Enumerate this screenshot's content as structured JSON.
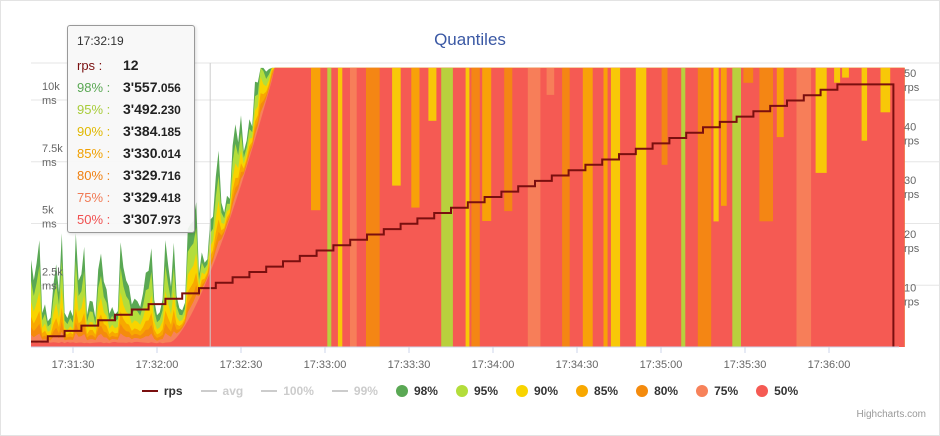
{
  "chart_data": {
    "type": "area",
    "title": "Quantiles",
    "credits": "Highcharts.com",
    "xaxis": {
      "ticks": [
        "17:31:30",
        "17:32:00",
        "17:32:30",
        "17:33:00",
        "17:33:30",
        "17:34:00",
        "17:34:30",
        "17:35:00",
        "17:35:30",
        "17:36:00"
      ],
      "range": [
        "17:31:15",
        "17:36:25"
      ]
    },
    "y_left": {
      "range": [
        0,
        11500
      ],
      "ticks": [
        {
          "value": 2500,
          "label": "2.5k",
          "unit": "ms"
        },
        {
          "value": 5000,
          "label": "5k",
          "unit": "ms"
        },
        {
          "value": 7500,
          "label": "7.5k",
          "unit": "ms"
        },
        {
          "value": 10000,
          "label": "10k",
          "unit": "ms"
        }
      ]
    },
    "y_right": {
      "range": [
        0,
        53
      ],
      "ticks": [
        {
          "value": 10,
          "label": "10",
          "unit": "rps"
        },
        {
          "value": 20,
          "label": "20",
          "unit": "rps"
        },
        {
          "value": 30,
          "label": "30",
          "unit": "rps"
        },
        {
          "value": 40,
          "label": "40",
          "unit": "rps"
        },
        {
          "value": 50,
          "label": "50",
          "unit": "rps"
        }
      ]
    },
    "grid": true,
    "legend_placement": "bottom",
    "rps_series": {
      "name": "rps",
      "color": "#7a0f0f",
      "start": "17:31:15",
      "step_seconds": 6,
      "start_value": 1,
      "end_value": 49,
      "drop_time": "17:36:25"
    },
    "quantile_series": [
      {
        "name": "98%",
        "color": "#5aa854"
      },
      {
        "name": "95%",
        "color": "#b3dd3b"
      },
      {
        "name": "90%",
        "color": "#f8d400"
      },
      {
        "name": "85%",
        "color": "#f8a800"
      },
      {
        "name": "80%",
        "color": "#f48b0d"
      },
      {
        "name": "75%",
        "color": "#f7825a"
      },
      {
        "name": "50%",
        "color": "#f55a53"
      }
    ],
    "hidden_series": [
      {
        "name": "avg",
        "color": "#cccccc"
      },
      {
        "name": "100%",
        "color": "#cccccc"
      },
      {
        "name": "99%",
        "color": "#cccccc"
      }
    ],
    "crosshair_time": "17:32:19",
    "tooltip": {
      "time": "17:32:19",
      "rows": [
        {
          "label": "rps",
          "value": "12",
          "color": "#7a0f0f"
        },
        {
          "label": "98%",
          "value_main": "3'557",
          "value_frac": ".056",
          "color": "#5aa854"
        },
        {
          "label": "95%",
          "value_main": "3'492",
          "value_frac": ".230",
          "color": "#a8cc3a"
        },
        {
          "label": "90%",
          "value_main": "3'384",
          "value_frac": ".185",
          "color": "#e0b800"
        },
        {
          "label": "85%",
          "value_main": "3'330",
          "value_frac": ".014",
          "color": "#f0a000"
        },
        {
          "label": "80%",
          "value_main": "3'329",
          "value_frac": ".716",
          "color": "#f08010"
        },
        {
          "label": "75%",
          "value_main": "3'329",
          "value_frac": ".418",
          "color": "#f07a55"
        },
        {
          "label": "50%",
          "value_main": "3'307",
          "value_frac": ".973",
          "color": "#f05050"
        }
      ]
    }
  }
}
